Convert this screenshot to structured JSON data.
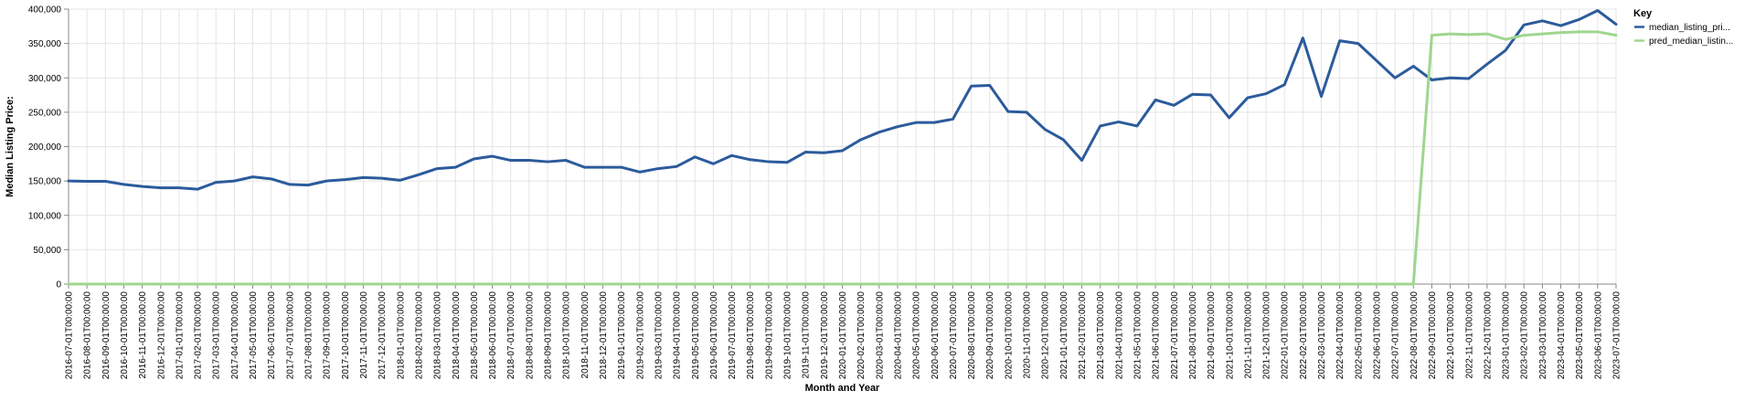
{
  "chart_data": {
    "type": "line",
    "xlabel": "Month and Year",
    "ylabel": "Median Listing Price:",
    "ylim": [
      0,
      400000
    ],
    "yticks": [
      0,
      50000,
      100000,
      150000,
      200000,
      250000,
      300000,
      350000,
      400000
    ],
    "ytick_labels": [
      "0",
      "50,000",
      "100,000",
      "150,000",
      "200,000",
      "250,000",
      "300,000",
      "350,000",
      "400,000"
    ],
    "grid": true,
    "legend": {
      "title": "Key",
      "placement": "top-right"
    },
    "x": [
      "2016-07-01T00:00:00",
      "2016-08-01T00:00:00",
      "2016-09-01T00:00:00",
      "2016-10-01T00:00:00",
      "2016-11-01T00:00:00",
      "2016-12-01T00:00:00",
      "2017-01-01T00:00:00",
      "2017-02-01T00:00:00",
      "2017-03-01T00:00:00",
      "2017-04-01T00:00:00",
      "2017-05-01T00:00:00",
      "2017-06-01T00:00:00",
      "2017-07-01T00:00:00",
      "2017-08-01T00:00:00",
      "2017-09-01T00:00:00",
      "2017-10-01T00:00:00",
      "2017-11-01T00:00:00",
      "2017-12-01T00:00:00",
      "2018-01-01T00:00:00",
      "2018-02-01T00:00:00",
      "2018-03-01T00:00:00",
      "2018-04-01T00:00:00",
      "2018-05-01T00:00:00",
      "2018-06-01T00:00:00",
      "2018-07-01T00:00:00",
      "2018-08-01T00:00:00",
      "2018-09-01T00:00:00",
      "2018-10-01T00:00:00",
      "2018-11-01T00:00:00",
      "2018-12-01T00:00:00",
      "2019-01-01T00:00:00",
      "2019-02-01T00:00:00",
      "2019-03-01T00:00:00",
      "2019-04-01T00:00:00",
      "2019-05-01T00:00:00",
      "2019-06-01T00:00:00",
      "2019-07-01T00:00:00",
      "2019-08-01T00:00:00",
      "2019-09-01T00:00:00",
      "2019-10-01T00:00:00",
      "2019-11-01T00:00:00",
      "2019-12-01T00:00:00",
      "2020-01-01T00:00:00",
      "2020-02-01T00:00:00",
      "2020-03-01T00:00:00",
      "2020-04-01T00:00:00",
      "2020-05-01T00:00:00",
      "2020-06-01T00:00:00",
      "2020-07-01T00:00:00",
      "2020-08-01T00:00:00",
      "2020-09-01T00:00:00",
      "2020-10-01T00:00:00",
      "2020-11-01T00:00:00",
      "2020-12-01T00:00:00",
      "2021-01-01T00:00:00",
      "2021-02-01T00:00:00",
      "2021-03-01T00:00:00",
      "2021-04-01T00:00:00",
      "2021-05-01T00:00:00",
      "2021-06-01T00:00:00",
      "2021-07-01T00:00:00",
      "2021-08-01T00:00:00",
      "2021-09-01T00:00:00",
      "2021-10-01T00:00:00",
      "2021-11-01T00:00:00",
      "2021-12-01T00:00:00",
      "2022-01-01T00:00:00",
      "2022-02-01T00:00:00",
      "2022-03-01T00:00:00",
      "2022-04-01T00:00:00",
      "2022-05-01T00:00:00",
      "2022-06-01T00:00:00",
      "2022-07-01T00:00:00",
      "2022-08-01T00:00:00",
      "2022-09-01T00:00:00",
      "2022-10-01T00:00:00",
      "2022-11-01T00:00:00",
      "2022-12-01T00:00:00",
      "2023-01-01T00:00:00",
      "2023-02-01T00:00:00",
      "2023-03-01T00:00:00",
      "2023-04-01T00:00:00",
      "2023-05-01T00:00:00",
      "2023-06-01T00:00:00",
      "2023-07-01T00:00:00"
    ],
    "series": [
      {
        "name": "median_listing_pri...",
        "color": "#2c5b9c",
        "values": [
          150000,
          149500,
          149500,
          145000,
          142000,
          140000,
          140000,
          138000,
          148000,
          150000,
          156000,
          153000,
          145000,
          144000,
          150000,
          152000,
          155000,
          154000,
          151000,
          159000,
          168000,
          170000,
          182000,
          186000,
          180000,
          180000,
          178000,
          180000,
          170000,
          170000,
          170000,
          163000,
          168000,
          171000,
          185000,
          175000,
          187000,
          181000,
          178000,
          177000,
          192000,
          191000,
          194000,
          210000,
          221000,
          229000,
          235000,
          235000,
          240000,
          288000,
          289000,
          251000,
          250000,
          225000,
          210000,
          180000,
          230000,
          236000,
          230000,
          268000,
          260000,
          276000,
          275000,
          242000,
          271000,
          277000,
          290000,
          358000,
          273000,
          354000,
          350000,
          325000,
          300000,
          317000,
          297000,
          300000,
          299000,
          320000,
          340000,
          377000,
          383000,
          376000,
          385000,
          398000,
          378000
        ]
      },
      {
        "name": "pred_median_listin...",
        "color": "#9fd68f",
        "values": [
          0,
          0,
          0,
          0,
          0,
          0,
          0,
          0,
          0,
          0,
          0,
          0,
          0,
          0,
          0,
          0,
          0,
          0,
          0,
          0,
          0,
          0,
          0,
          0,
          0,
          0,
          0,
          0,
          0,
          0,
          0,
          0,
          0,
          0,
          0,
          0,
          0,
          0,
          0,
          0,
          0,
          0,
          0,
          0,
          0,
          0,
          0,
          0,
          0,
          0,
          0,
          0,
          0,
          0,
          0,
          0,
          0,
          0,
          0,
          0,
          0,
          0,
          0,
          0,
          0,
          0,
          0,
          0,
          0,
          0,
          0,
          0,
          0,
          0,
          362000,
          364000,
          363000,
          364000,
          356000,
          362000,
          364000,
          366000,
          367000,
          367000,
          362000
        ]
      }
    ]
  }
}
